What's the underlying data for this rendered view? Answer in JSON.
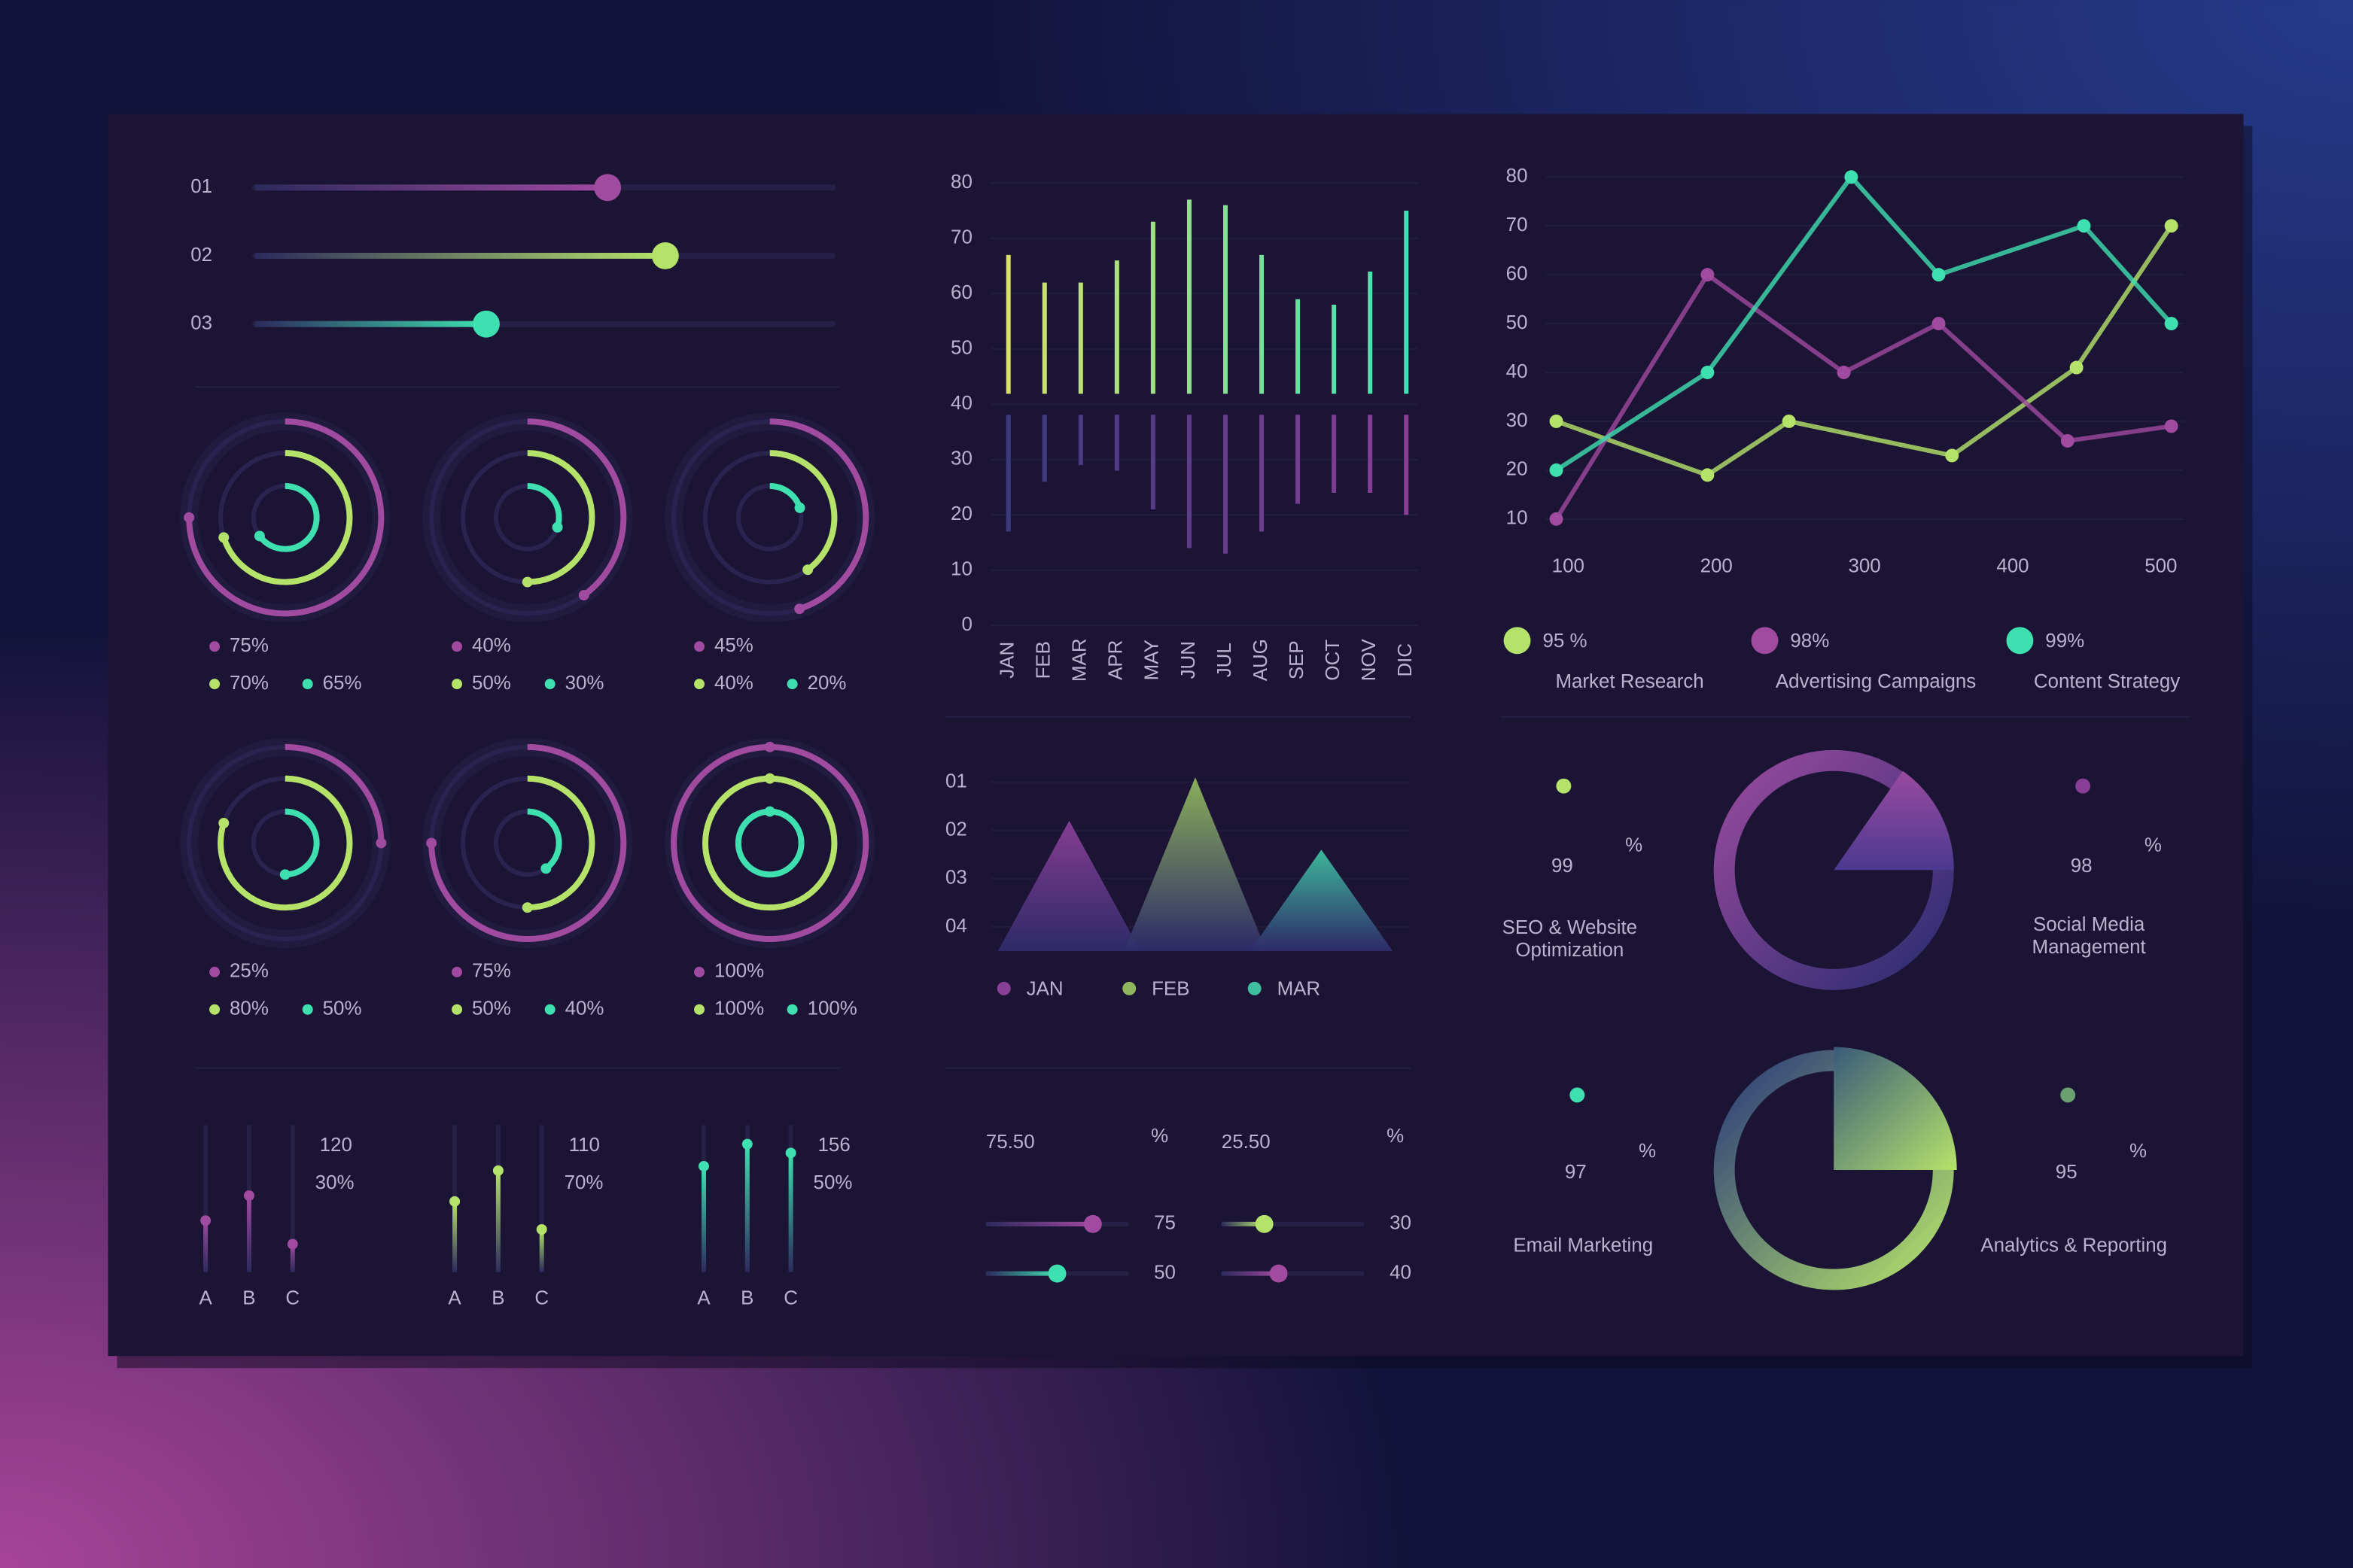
{
  "sliders": {
    "range": [
      0,
      100
    ],
    "items": [
      {
        "label": "01",
        "value": 61,
        "color": "#a04aa0"
      },
      {
        "label": "02",
        "value": 71,
        "color": "#b5e36a"
      },
      {
        "label": "03",
        "value": 40,
        "color": "#3fe0b0"
      }
    ]
  },
  "rings": {
    "range": [
      0,
      100
    ],
    "colors": [
      "#a04aa0",
      "#b5e36a",
      "#3fe0b0"
    ],
    "items": [
      {
        "values": [
          75,
          70,
          65
        ],
        "value_labels": [
          "75%",
          "70%",
          "65%"
        ]
      },
      {
        "values": [
          40,
          50,
          30
        ],
        "value_labels": [
          "40%",
          "50%",
          "30%"
        ]
      },
      {
        "values": [
          45,
          40,
          20
        ],
        "value_labels": [
          "45%",
          "40%",
          "20%"
        ]
      },
      {
        "values": [
          25,
          80,
          50
        ],
        "value_labels": [
          "25%",
          "80%",
          "50%"
        ]
      },
      {
        "values": [
          75,
          50,
          40
        ],
        "value_labels": [
          "75%",
          "50%",
          "40%"
        ]
      },
      {
        "values": [
          100,
          100,
          100
        ],
        "value_labels": [
          "100%",
          "100%",
          "100%"
        ]
      }
    ]
  },
  "chart_data": [
    {
      "type": "bar",
      "categories": [
        "JAN",
        "FEB",
        "MAR",
        "APR",
        "MAY",
        "JUN",
        "JUL",
        "AUG",
        "SEP",
        "OCT",
        "NOV",
        "DIC"
      ],
      "baseline": 40,
      "series": [
        {
          "color": [
            "#d8e06c",
            "#3fe0b4"
          ],
          "values": [
            67,
            62,
            62,
            66,
            73,
            77,
            76,
            67,
            59,
            58,
            64,
            75
          ]
        },
        {
          "color": [
            "#3a3a80",
            "#8a3f97"
          ],
          "values": [
            17,
            26,
            29,
            28,
            21,
            14,
            13,
            17,
            22,
            24,
            24,
            20
          ]
        }
      ],
      "ylim": [
        0,
        80
      ],
      "yticks": [
        0,
        10,
        20,
        30,
        40,
        50,
        60,
        70,
        80
      ],
      "grid": true
    },
    {
      "type": "line",
      "xlim": [
        90,
        510
      ],
      "xticks": [
        100,
        200,
        300,
        400,
        500
      ],
      "ylim": [
        10,
        80
      ],
      "yticks": [
        10,
        20,
        30,
        40,
        50,
        60,
        70,
        80
      ],
      "grid": true,
      "series": [
        {
          "name": "Market Research",
          "stat_label": "95 %",
          "color": "#b5e36a",
          "x": [
            92,
            194,
            249,
            359,
            443,
            507
          ],
          "values": [
            30,
            19,
            30,
            23,
            41,
            70
          ]
        },
        {
          "name": "Advertising Campaigns",
          "stat_label": "98%",
          "color": "#a04aa0",
          "x": [
            92,
            194,
            286,
            350,
            437,
            507
          ],
          "values": [
            10,
            60,
            40,
            50,
            26,
            29
          ]
        },
        {
          "name": "Content Strategy",
          "stat_label": "99%",
          "color": "#3fe0b0",
          "x": [
            92,
            194,
            291,
            350,
            448,
            507
          ],
          "values": [
            20,
            40,
            80,
            60,
            70,
            50
          ]
        }
      ]
    },
    {
      "type": "triangle",
      "categories": [
        "JAN",
        "FEB",
        "MAR"
      ],
      "values": [
        3.2,
        4.1,
        2.6
      ],
      "colors": [
        "#8a3f97",
        "#8fb65c",
        "#3fbfa0"
      ],
      "ylim": [
        0.5,
        4.2
      ],
      "yticks": [
        {
          "value": 4,
          "label": "01"
        },
        {
          "value": 3,
          "label": "02"
        },
        {
          "value": 2,
          "label": "03"
        },
        {
          "value": 1,
          "label": "04"
        }
      ],
      "grid": true
    }
  ],
  "mini_bars": {
    "categories": [
      "A",
      "B",
      "C"
    ],
    "range": [
      0,
      100
    ],
    "groups": [
      {
        "total": 120,
        "percent_label": "30%",
        "color": "#a04aa0",
        "values": [
          35,
          52,
          19
        ]
      },
      {
        "total": 110,
        "percent_label": "70%",
        "color": "#b5e36a",
        "values": [
          48,
          69,
          29
        ]
      },
      {
        "total": 156,
        "percent_label": "50%",
        "color": "#3fe0b0",
        "values": [
          72,
          87,
          81
        ]
      }
    ]
  },
  "kpi_sliders": {
    "range": [
      0,
      100
    ],
    "items": [
      {
        "value_label": "75.50",
        "unit": "%",
        "sliders": [
          {
            "value": 75,
            "color": "#a04aa0"
          },
          {
            "value": 50,
            "color": "#3fe0b0"
          }
        ]
      },
      {
        "value_label": "25.50",
        "unit": "%",
        "sliders": [
          {
            "value": 30,
            "color": "#b5e36a"
          },
          {
            "value": 40,
            "color": "#a04aa0"
          }
        ]
      }
    ]
  },
  "kpis": [
    {
      "value": 99,
      "unit": "%",
      "label": [
        "SEO & Website",
        "Optimization"
      ],
      "color": "#b5e36a"
    },
    {
      "value": 98,
      "unit": "%",
      "label": [
        "Social Media",
        "Management"
      ],
      "color": "#8a3f97"
    },
    {
      "value": 97,
      "unit": "%",
      "label": [
        "Email Marketing"
      ],
      "color": "#3fe0b0"
    },
    {
      "value": 95,
      "unit": "%",
      "label": [
        "Analytics & Reporting"
      ],
      "color": "#6aa070"
    }
  ]
}
